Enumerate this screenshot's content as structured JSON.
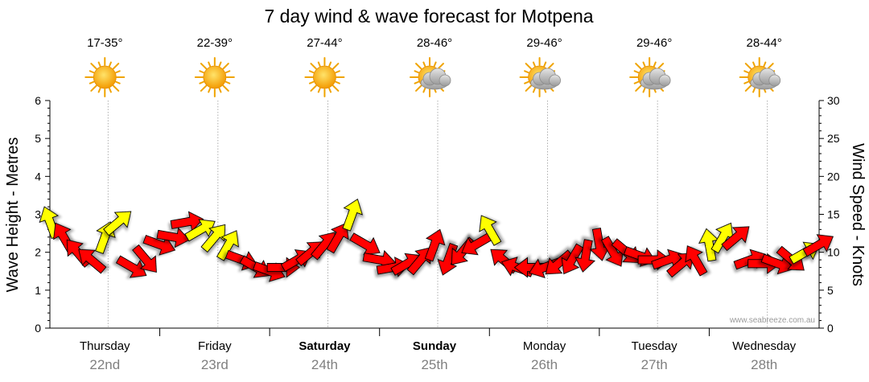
{
  "chart_data": {
    "type": "line",
    "title": "7 day wind & wave forecast for Motpena",
    "ylabel_left": "Wave Height - Metres",
    "ylabel_right": "Wind Speed - Knots",
    "yticks_left": [
      "0",
      "1",
      "2",
      "3",
      "4",
      "5",
      "6"
    ],
    "yticks_right": [
      "0",
      "5",
      "10",
      "15",
      "20",
      "25",
      "30"
    ],
    "ylim_left": [
      0,
      6
    ],
    "ylim_right": [
      0,
      30
    ],
    "credit": "www.seabreeze.com.au",
    "days": [
      {
        "name": "Thursday",
        "date": "22nd",
        "temp": "17-35°",
        "icon": "sun-icon",
        "bold": false
      },
      {
        "name": "Friday",
        "date": "23rd",
        "temp": "22-39°",
        "icon": "sun-icon",
        "bold": false
      },
      {
        "name": "Saturday",
        "date": "24th",
        "temp": "27-44°",
        "icon": "sun-icon",
        "bold": true
      },
      {
        "name": "Sunday",
        "date": "25th",
        "temp": "28-46°",
        "icon": "partly-cloudy-icon",
        "bold": true
      },
      {
        "name": "Monday",
        "date": "26th",
        "temp": "29-46°",
        "icon": "partly-cloudy-icon",
        "bold": false
      },
      {
        "name": "Tuesday",
        "date": "27th",
        "temp": "29-46°",
        "icon": "partly-cloudy-icon",
        "bold": false
      },
      {
        "name": "Wednesday",
        "date": "28th",
        "temp": "28-44°",
        "icon": "partly-cloudy-icon",
        "bold": false
      }
    ],
    "wind_series": {
      "name": "wind",
      "unit": "knots",
      "x_hours": [
        0,
        3,
        6,
        9,
        12,
        15,
        18,
        21,
        24,
        27,
        30,
        33,
        36,
        39,
        42,
        45,
        48,
        51,
        54,
        57,
        60,
        63,
        66,
        69,
        72,
        75,
        78,
        81,
        84,
        87,
        90,
        93,
        96,
        99,
        102,
        105,
        108,
        111,
        114,
        117,
        120,
        123,
        126,
        129,
        132,
        135,
        138,
        141,
        144,
        147,
        150,
        153,
        156,
        159,
        162,
        165,
        168
      ],
      "speeds": [
        14,
        12,
        10,
        9,
        12,
        14,
        8,
        9,
        11,
        12,
        14,
        13,
        12,
        11,
        9,
        8,
        7.5,
        8,
        9,
        10,
        11,
        12,
        15,
        11,
        9,
        8,
        8.5,
        9,
        11,
        9,
        10,
        11,
        13,
        9,
        8,
        8,
        8,
        8.5,
        9,
        9.5,
        11,
        10,
        10,
        9.5,
        9,
        9,
        8.5,
        9,
        11,
        12,
        12,
        9,
        8.5,
        8.5,
        9,
        10,
        11
      ],
      "direction_deg": [
        340,
        330,
        320,
        310,
        20,
        50,
        120,
        140,
        110,
        100,
        80,
        60,
        40,
        30,
        110,
        120,
        110,
        90,
        60,
        50,
        40,
        30,
        20,
        120,
        100,
        80,
        60,
        40,
        20,
        200,
        220,
        240,
        330,
        310,
        290,
        270,
        250,
        230,
        210,
        190,
        170,
        150,
        130,
        110,
        90,
        70,
        50,
        330,
        350,
        30,
        50,
        70,
        90,
        110,
        130,
        60,
        60
      ],
      "color_flag": [
        "y",
        "r",
        "r",
        "r",
        "y",
        "y",
        "r",
        "r",
        "r",
        "r",
        "r",
        "y",
        "y",
        "y",
        "r",
        "r",
        "r",
        "r",
        "r",
        "r",
        "r",
        "r",
        "y",
        "r",
        "r",
        "r",
        "r",
        "r",
        "r",
        "r",
        "r",
        "r",
        "y",
        "r",
        "r",
        "r",
        "r",
        "r",
        "r",
        "r",
        "r",
        "r",
        "r",
        "r",
        "r",
        "r",
        "r",
        "r",
        "y",
        "y",
        "r",
        "r",
        "r",
        "r",
        "r",
        "y",
        "r"
      ]
    }
  }
}
